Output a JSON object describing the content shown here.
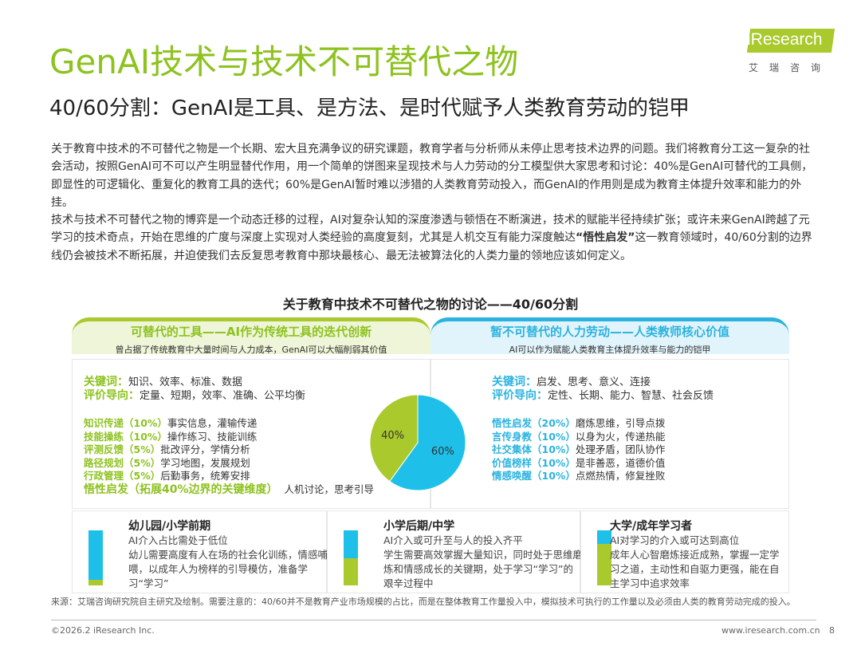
{
  "header": {
    "title": "GenAI技术与技术不可替代之物",
    "subtitle": "40/60分割：GenAI是工具、是方法、是时代赋予人类教育劳动的铠甲"
  },
  "logo": {
    "text": "iResearch",
    "cn": "艾瑞咨询"
  },
  "body": {
    "p1": "关于教育中技术的不可替代之物是一个长期、宏大且充满争议的研究课题，教育学者与分析师从未停止思考技术边界的问题。我们将教育分工这一复杂的社会活动，按照GenAI可不可以产生明显替代作用，用一个简单的饼图来呈现技术与人力劳动的分工模型供大家思考和讨论：40%是GenAI可替代的工具侧，即显性的可逻辑化、重复化的教育工具的迭代；60%是GenAI暂时难以涉猎的人类教育劳动投入，而GenAI的作用则是成为教育主体提升效率和能力的外挂。",
    "p2_a": "技术与技术不可替代之物的博弈是一个动态迁移的过程，AI对复杂认知的深度渗透与顿悟在不断演进，技术的赋能半径持续扩张；或许未来GenAI跨越了元学习的技术奇点，开始在思维的广度与深度上实现对人类经验的高度复刻，尤其是人机交互有能力深度触达",
    "p2_bold": "“悟性启发”",
    "p2_b": "这一教育领域时，40/60分割的边界线仍会被技术不断拓展，并迫使我们去反复思考教育中那块最核心、最无法被算法化的人类力量的领地应该如何定义。"
  },
  "chart_data": {
    "type": "pie",
    "title": "关于教育中技术不可替代之物的讨论——40/60分割",
    "slices": [
      {
        "label": "40%",
        "value": 40,
        "color": "#a9c92c"
      },
      {
        "label": "60%",
        "value": 60,
        "color": "#1ec0ea"
      }
    ]
  },
  "left": {
    "title": "可替代的工具——AI作为传统工具的迭代创新",
    "subtitle": "曾占据了传统教育中大量时间与人力成本，GenAI可以大幅削弱其价值",
    "kw_label": "关键词：",
    "kw": "知识、效率、标准、数据",
    "eval_label": "评价导向：",
    "eval": "定量、短期，效率、准确、公平均衡",
    "items": [
      {
        "label": "知识传递（10%）",
        "desc": "事实信息，灌输传递"
      },
      {
        "label": "技能操练（10%）",
        "desc": "操作练习、技能训练"
      },
      {
        "label": "评测反馈（5%）",
        "desc": "批改评分，学情分析"
      },
      {
        "label": "路径规划（5%）",
        "desc": "学习地图，发展规划"
      },
      {
        "label": "行政管理（5%）",
        "desc": "后勤事务，统筹安排"
      },
      {
        "label": "悟性启发（拓展40%边界的关键维度）",
        "desc": "人机讨论，思考引导"
      }
    ]
  },
  "right": {
    "title": "暂不可替代的人力劳动——人类教师核心价值",
    "subtitle": "AI可以作为赋能人类教育主体提升效率与能力的铠甲",
    "kw_label": "关键词：",
    "kw": "启发、思考、意义、连接",
    "eval_label": "评价导向：",
    "eval": "定性、长期、能力、智慧、社会反馈",
    "items": [
      {
        "label": "悟性启发（20%）",
        "desc": "磨炼思维，引导点拨"
      },
      {
        "label": "言传身教（10%）",
        "desc": "以身为火，传递热能"
      },
      {
        "label": "社交集体（10%）",
        "desc": "处理矛盾，团队协作"
      },
      {
        "label": "价值榜样（10%）",
        "desc": "是非善恶，道德价值"
      },
      {
        "label": "情感唤醒（10%）",
        "desc": "点燃热情，修复挫败"
      }
    ]
  },
  "stages": [
    {
      "title": "幼儿园/小学前期",
      "line1": "AI介入占比需处于低位",
      "desc": "幼儿需要高度有人在场的社会化训练，情感哺喂，以成年人为榜样的引导模仿，准备学习“学习”",
      "ai_share": 10
    },
    {
      "title": "小学后期/中学",
      "line1": "AI介入或可升至与人的投入齐平",
      "desc": "学生需要高效掌握大量知识，同时处于思维磨炼和情感成长的关键期，处于学习“学习”的艰辛过程中",
      "ai_share": 50
    },
    {
      "title": "大学/成年学习者",
      "line1": "AI对学习的介入或可达到高位",
      "desc": "成年人心智磨炼接近成熟，掌握一定学习之道，主动性和自驱力更强，能在自主学习中追求效率",
      "ai_share": 75
    }
  ],
  "footer": {
    "source": "来源：艾瑞咨询研究院自主研究及绘制。需要注意的：40/60并不是教育产业市场规模的占比，而是在整体教育工作量投入中，模拟技术可执行的工作量以及必须由人类的教育劳动完成的投入。",
    "copyright": "©2026.2 iResearch Inc.",
    "url": "www.iresearch.com.cn",
    "page": "8"
  }
}
